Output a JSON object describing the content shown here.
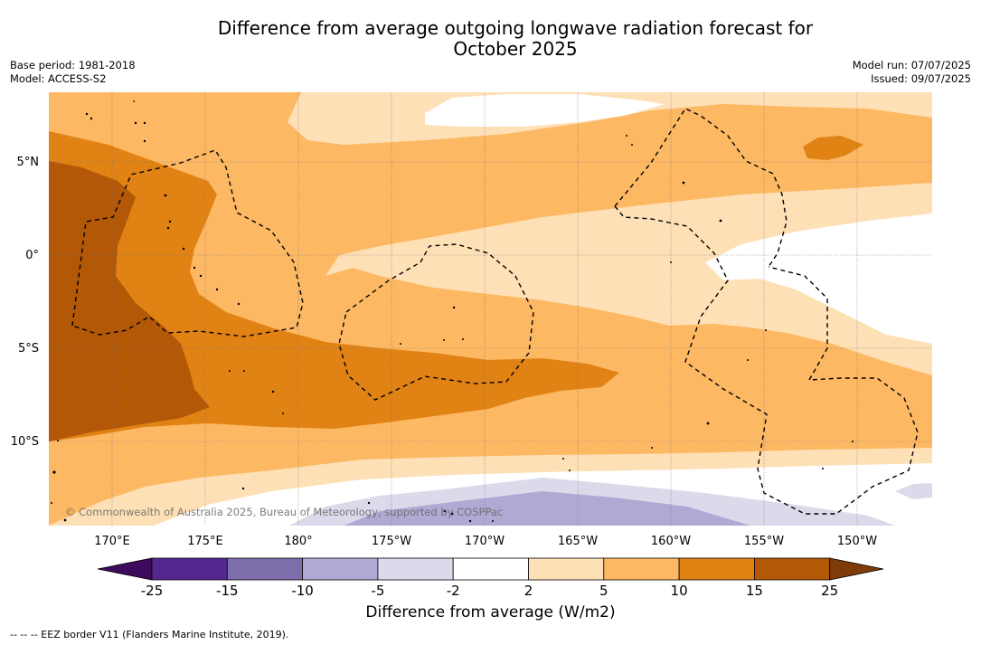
{
  "title_line1": "Difference from average outgoing longwave radiation forecast for",
  "title_line2": "October 2025",
  "base_period": "Base period: 1981-2018",
  "model": "Model: ACCESS-S2",
  "model_run": "Model run: 07/07/2025",
  "issued": "Issued: 09/07/2025",
  "lat_labels": [
    "5°N",
    "0°",
    "5°S",
    "10°S"
  ],
  "lon_labels": [
    "170°E",
    "175°E",
    "180°",
    "175°W",
    "170°W",
    "165°W",
    "160°W",
    "155°W",
    "150°W"
  ],
  "copyright": "© Commonwealth of Australia 2025, Bureau of Meteorology, supported by COSPPac",
  "colorbar": {
    "ticks": [
      "-25",
      "-15",
      "-10",
      "-5",
      "-2",
      "2",
      "5",
      "10",
      "15",
      "25"
    ],
    "colors": {
      "below_-25": "#3d0a5c",
      "-25_-15": "#54278f",
      "-15_-10": "#7d6eab",
      "-10_-5": "#b1a9d3",
      "-5_-2": "#dadaeb",
      "-2_2": "#ffffff",
      "2_5": "#fee0b6",
      "5_10": "#fdb863",
      "10_15": "#e08214",
      "15_25": "#b35806",
      "above_25": "#7f3b08"
    },
    "label": "Difference from average (W/m2)"
  },
  "legend_note": "--  --  -- EEZ border V11 (Flanders Marine Institute, 2019)."
}
